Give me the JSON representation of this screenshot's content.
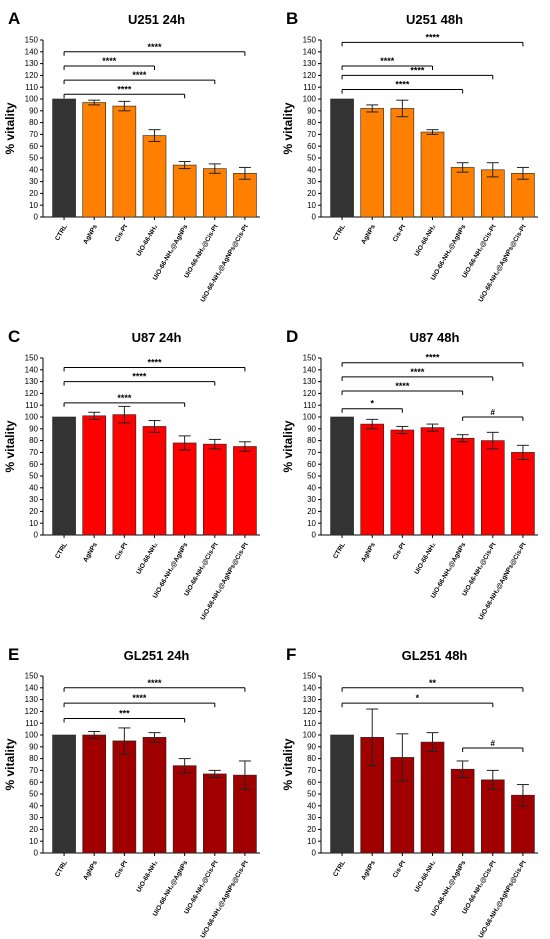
{
  "figure": {
    "panels": [
      {
        "letter": "A",
        "title": "U251 24h"
      },
      {
        "letter": "B",
        "title": "U251 48h"
      },
      {
        "letter": "C",
        "title": "U87 24h"
      },
      {
        "letter": "D",
        "title": "U87 48h"
      },
      {
        "letter": "E",
        "title": "GL251 24h"
      },
      {
        "letter": "F",
        "title": "GL251 48h"
      }
    ]
  },
  "colors": {
    "ctrl": "#333333",
    "u251": "#FF8000",
    "u87": "#FF0000",
    "gl251": "#A00000",
    "axis": "#000000"
  },
  "chart_data": [
    {
      "type": "bar",
      "panel": "A",
      "title": "U251 24h",
      "ylabel": "% vitality",
      "xlabel": "",
      "ylim": [
        0,
        150
      ],
      "yticks": [
        0,
        10,
        20,
        30,
        40,
        50,
        60,
        70,
        80,
        90,
        100,
        110,
        120,
        130,
        140,
        150
      ],
      "categories": [
        "CTRL",
        "AgNPs",
        "Cis-Pt",
        "UiO-66-NH₂",
        "UiO-66-NH₂@AgNPs",
        "UiO-66-NH₂@Cis-Pt",
        "UiO-66-NH₂@AgNPs@Cis-Pt"
      ],
      "values": [
        100,
        97,
        94,
        69,
        44,
        41,
        37
      ],
      "errors": [
        0,
        2,
        4,
        5,
        3,
        4,
        5
      ],
      "bar_colors": [
        "ctrl",
        "u251",
        "u251",
        "u251",
        "u251",
        "u251",
        "u251"
      ],
      "annotations": [
        {
          "from": 0,
          "to": 3,
          "y": 128,
          "text": "****"
        },
        {
          "from": 0,
          "to": 4,
          "y": 104,
          "text": "****"
        },
        {
          "from": 0,
          "to": 5,
          "y": 116,
          "text": "****"
        },
        {
          "from": 0,
          "to": 6,
          "y": 140,
          "text": "****"
        }
      ]
    },
    {
      "type": "bar",
      "panel": "B",
      "title": "U251 48h",
      "ylabel": "% vitality",
      "xlabel": "",
      "ylim": [
        0,
        150
      ],
      "yticks": [
        0,
        10,
        20,
        30,
        40,
        50,
        60,
        70,
        80,
        90,
        100,
        110,
        120,
        130,
        140,
        150
      ],
      "categories": [
        "CTRL",
        "AgNPs",
        "Cis-Pt",
        "UiO-66-NH₂",
        "UiO-66-NH₂@AgNPs",
        "UiO-66-NH₂@Cis-Pt",
        "UiO-66-NH₂@AgNPs@Cis-Pt"
      ],
      "values": [
        100,
        92,
        92,
        72,
        42,
        40,
        37
      ],
      "errors": [
        0,
        3,
        7,
        2,
        4,
        6,
        5
      ],
      "bar_colors": [
        "ctrl",
        "u251",
        "u251",
        "u251",
        "u251",
        "u251",
        "u251"
      ],
      "annotations": [
        {
          "from": 0,
          "to": 3,
          "y": 128,
          "text": "****"
        },
        {
          "from": 0,
          "to": 4,
          "y": 108,
          "text": "****"
        },
        {
          "from": 0,
          "to": 5,
          "y": 120,
          "text": "****"
        },
        {
          "from": 0,
          "to": 6,
          "y": 148,
          "text": "****"
        }
      ]
    },
    {
      "type": "bar",
      "panel": "C",
      "title": "U87 24h",
      "ylabel": "% vitality",
      "xlabel": "",
      "ylim": [
        0,
        150
      ],
      "yticks": [
        0,
        10,
        20,
        30,
        40,
        50,
        60,
        70,
        80,
        90,
        100,
        110,
        120,
        130,
        140,
        150
      ],
      "categories": [
        "CTRL",
        "AgNPs",
        "Cis-Pt",
        "UiO-66-NH₂",
        "UiO-66-NH₂@AgNPs",
        "UiO-66-NH₂@Cis-Pt",
        "UiO-66-NH₂@AgNPs@Cis-Pt"
      ],
      "values": [
        100,
        101,
        102,
        92,
        78,
        77,
        75
      ],
      "errors": [
        0,
        3,
        7,
        5,
        6,
        4,
        4
      ],
      "bar_colors": [
        "ctrl",
        "u87",
        "u87",
        "u87",
        "u87",
        "u87",
        "u87"
      ],
      "annotations": [
        {
          "from": 0,
          "to": 4,
          "y": 112,
          "text": "****"
        },
        {
          "from": 0,
          "to": 5,
          "y": 130,
          "text": "****"
        },
        {
          "from": 0,
          "to": 6,
          "y": 142,
          "text": "****"
        }
      ]
    },
    {
      "type": "bar",
      "panel": "D",
      "title": "U87 48h",
      "ylabel": "% vitality",
      "xlabel": "",
      "ylim": [
        0,
        150
      ],
      "yticks": [
        0,
        10,
        20,
        30,
        40,
        50,
        60,
        70,
        80,
        90,
        100,
        110,
        120,
        130,
        140,
        150
      ],
      "categories": [
        "CTRL",
        "AgNPs",
        "Cis-Pt",
        "UiO-66-NH₂",
        "UiO-66-NH₂@AgNPs",
        "UiO-66-NH₂@Cis-Pt",
        "UiO-66-NH₂@AgNPs@Cis-Pt"
      ],
      "values": [
        100,
        94,
        89,
        91,
        82,
        80,
        70
      ],
      "errors": [
        0,
        4,
        3,
        3,
        3,
        7,
        6
      ],
      "bar_colors": [
        "ctrl",
        "u87",
        "u87",
        "u87",
        "u87",
        "u87",
        "u87"
      ],
      "annotations": [
        {
          "from": 0,
          "to": 2,
          "y": 107,
          "text": "*"
        },
        {
          "from": 0,
          "to": 4,
          "y": 122,
          "text": "****"
        },
        {
          "from": 0,
          "to": 5,
          "y": 134,
          "text": "****"
        },
        {
          "from": 0,
          "to": 6,
          "y": 146,
          "text": "****"
        },
        {
          "from": 4,
          "to": 6,
          "y": 100,
          "text": "#"
        }
      ]
    },
    {
      "type": "bar",
      "panel": "E",
      "title": "GL251 24h",
      "ylabel": "% vitality",
      "xlabel": "",
      "ylim": [
        0,
        150
      ],
      "yticks": [
        0,
        10,
        20,
        30,
        40,
        50,
        60,
        70,
        80,
        90,
        100,
        110,
        120,
        130,
        140,
        150
      ],
      "categories": [
        "CTRL",
        "AgNPs",
        "Cis-Pt",
        "UiO-66-NH₂",
        "UiO-66-NH₂@AgNPs",
        "UiO-66-NH₂@Cis-Pt",
        "UiO-66-NH₂@AgNPs@Cis-Pt"
      ],
      "values": [
        100,
        100,
        95,
        98,
        74,
        67,
        66
      ],
      "errors": [
        0,
        3,
        11,
        4,
        6,
        3,
        12
      ],
      "bar_colors": [
        "ctrl",
        "gl251",
        "gl251",
        "gl251",
        "gl251",
        "gl251",
        "gl251"
      ],
      "annotations": [
        {
          "from": 0,
          "to": 4,
          "y": 114,
          "text": "***"
        },
        {
          "from": 0,
          "to": 5,
          "y": 127,
          "text": "****"
        },
        {
          "from": 0,
          "to": 6,
          "y": 140,
          "text": "****"
        }
      ]
    },
    {
      "type": "bar",
      "panel": "F",
      "title": "GL251 48h",
      "ylabel": "% vitality",
      "xlabel": "",
      "ylim": [
        0,
        150
      ],
      "yticks": [
        0,
        10,
        20,
        30,
        40,
        50,
        60,
        70,
        80,
        90,
        100,
        110,
        120,
        130,
        140,
        150
      ],
      "categories": [
        "CTRL",
        "AgNPs",
        "Cis-Pt",
        "UiO-66-NH₂",
        "UiO-66-NH₂@AgNPs",
        "UiO-66-NH₂@Cis-Pt",
        "UiO-66-NH₂@AgNPs@Cis-Pt"
      ],
      "values": [
        100,
        98,
        81,
        94,
        71,
        62,
        49
      ],
      "errors": [
        0,
        24,
        20,
        8,
        7,
        8,
        9
      ],
      "bar_colors": [
        "ctrl",
        "gl251",
        "gl251",
        "gl251",
        "gl251",
        "gl251",
        "gl251"
      ],
      "annotations": [
        {
          "from": 0,
          "to": 5,
          "y": 127,
          "text": "*"
        },
        {
          "from": 0,
          "to": 6,
          "y": 140,
          "text": "**"
        },
        {
          "from": 4,
          "to": 6,
          "y": 89,
          "text": "#"
        }
      ]
    }
  ]
}
